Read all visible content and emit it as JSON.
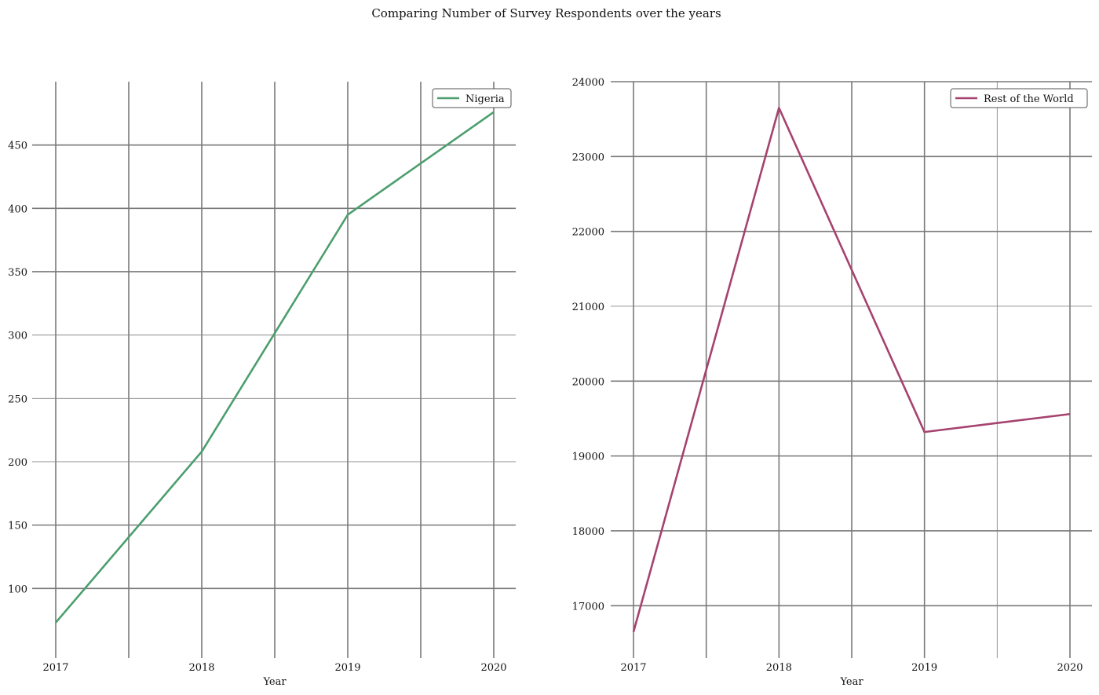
{
  "title": "Comparing Number of Survey Respondents over the years",
  "chart_data": [
    {
      "type": "line",
      "x": [
        2017,
        2018,
        2019,
        2020
      ],
      "xticks": [
        "2017",
        "2018",
        "2019",
        "2020"
      ],
      "xlabel": "Year",
      "ylabel": "",
      "ylim": [
        45,
        500
      ],
      "yticks": [
        100,
        150,
        200,
        250,
        300,
        350,
        400,
        450
      ],
      "grid": true,
      "legend_position": "top-right",
      "series": [
        {
          "name": "Nigeria",
          "values": [
            73,
            208,
            395,
            476
          ],
          "color": "#4c9e6e"
        }
      ]
    },
    {
      "type": "line",
      "x": [
        2017,
        2018,
        2019,
        2020
      ],
      "xticks": [
        "2017",
        "2018",
        "2019",
        "2020"
      ],
      "xlabel": "Year",
      "ylabel": "",
      "ylim": [
        16300,
        24000
      ],
      "yticks": [
        17000,
        18000,
        19000,
        20000,
        21000,
        22000,
        23000,
        24000
      ],
      "grid": true,
      "legend_position": "top-right",
      "series": [
        {
          "name": "Rest of the World",
          "values": [
            16650,
            23650,
            19320,
            19560
          ],
          "color": "#a6426f"
        }
      ]
    }
  ]
}
